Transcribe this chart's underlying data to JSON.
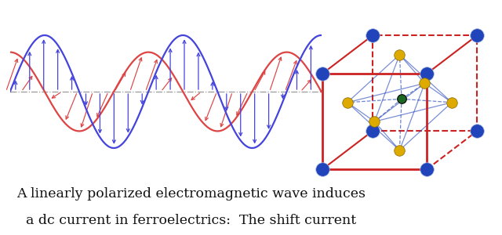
{
  "background_color": "#ffffff",
  "blue_wave_color": "#4444dd",
  "red_wave_color": "#dd4444",
  "axis_line_color": "#888888",
  "text_line1": "A linearly polarized electromagnetic wave induces",
  "text_line2": "a dc current in ferroelectrics:  The shift current",
  "text_color": "#111111",
  "text_fontsize": 12.5,
  "cube_blue_color": "#2244bb",
  "cube_red_color": "#cc2222",
  "cube_yellow_color": "#ddaa00",
  "cube_green_color": "#1a6622",
  "wave_lw": 1.6
}
